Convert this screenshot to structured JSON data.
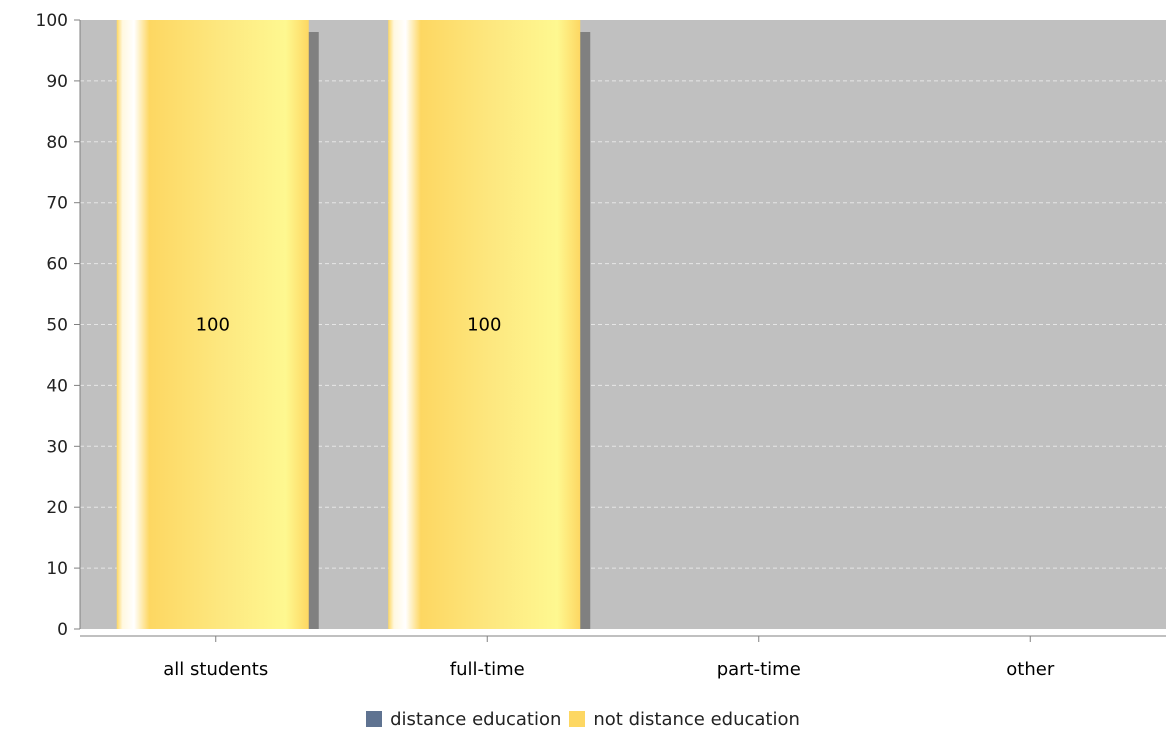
{
  "chart_data": {
    "type": "bar",
    "title": "",
    "xlabel": "",
    "ylabel": "",
    "categories": [
      "all students",
      "full-time",
      "part-time",
      "other"
    ],
    "series": [
      {
        "name": "distance education",
        "values": [
          0,
          0,
          0,
          0
        ],
        "color": "#5f7391"
      },
      {
        "name": "not distance education",
        "values": [
          100,
          100,
          0,
          0
        ],
        "color": "#fdd762"
      }
    ],
    "data_labels": [
      "100",
      "100",
      "",
      ""
    ],
    "ylim": [
      0,
      100
    ],
    "yticks": [
      0,
      10,
      20,
      30,
      40,
      50,
      60,
      70,
      80,
      90,
      100
    ],
    "grid": true,
    "legend_position": "bottom",
    "colors": {
      "plot_background": "#c0c0c0",
      "gridline": "#e6e6e6",
      "shadow": "#808080"
    }
  }
}
